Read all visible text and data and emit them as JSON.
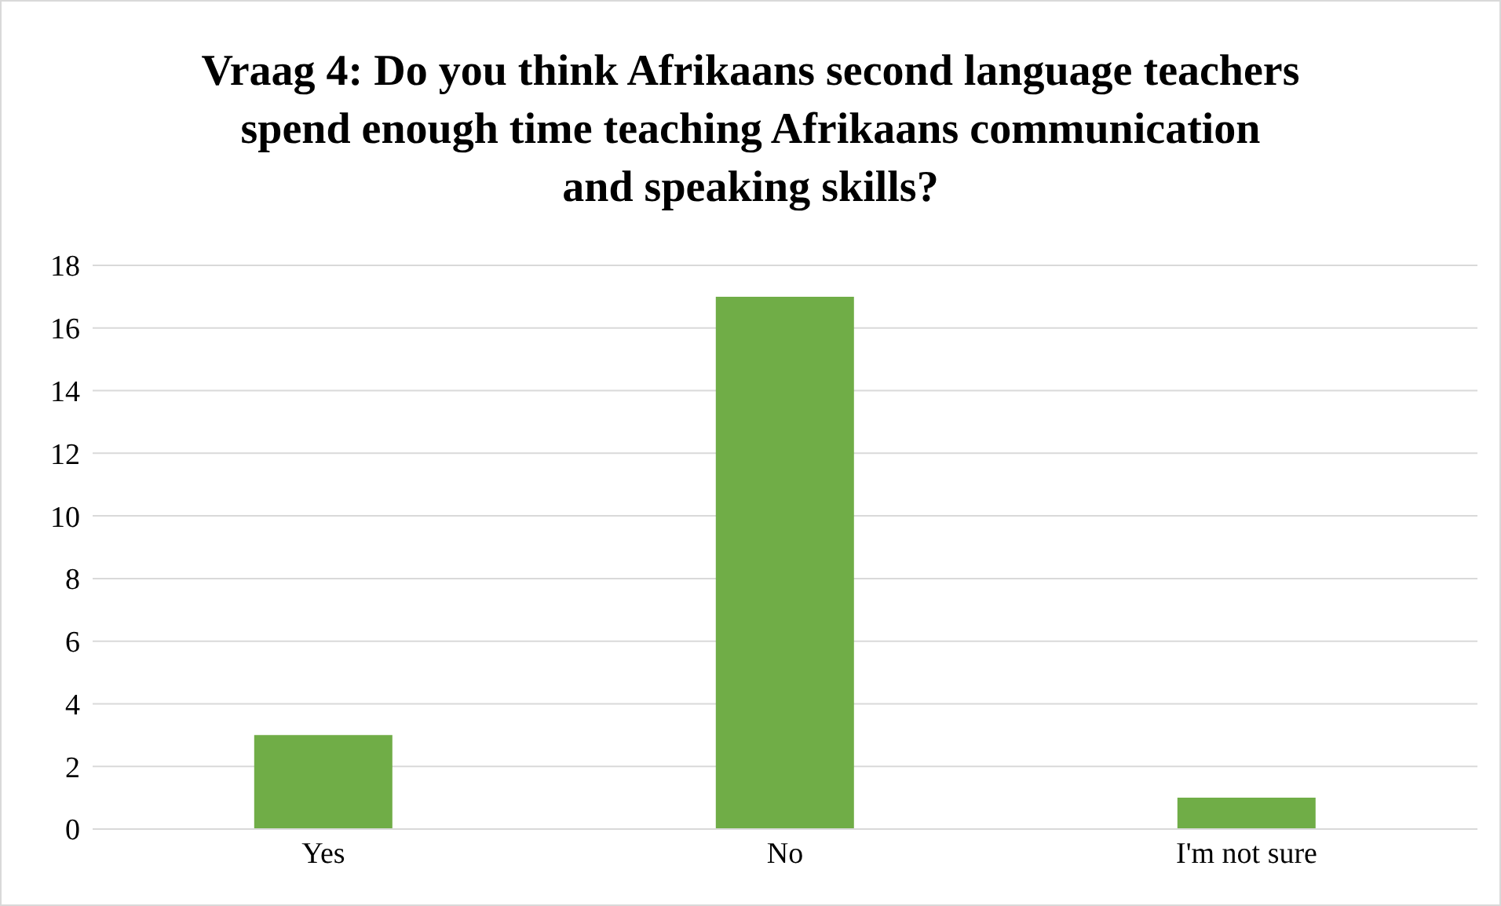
{
  "chart_data": {
    "type": "bar",
    "title": "Vraag 4: Do you think Afrikaans second language teachers spend enough time teaching Afrikaans communication and speaking skills?",
    "categories": [
      "Yes",
      "No",
      "I'm not sure"
    ],
    "values": [
      3,
      17,
      1
    ],
    "color": "#70ad47",
    "ylim": [
      0,
      18
    ],
    "yticks": [
      0,
      2,
      4,
      6,
      8,
      10,
      12,
      14,
      16,
      18
    ],
    "grid": "y"
  }
}
